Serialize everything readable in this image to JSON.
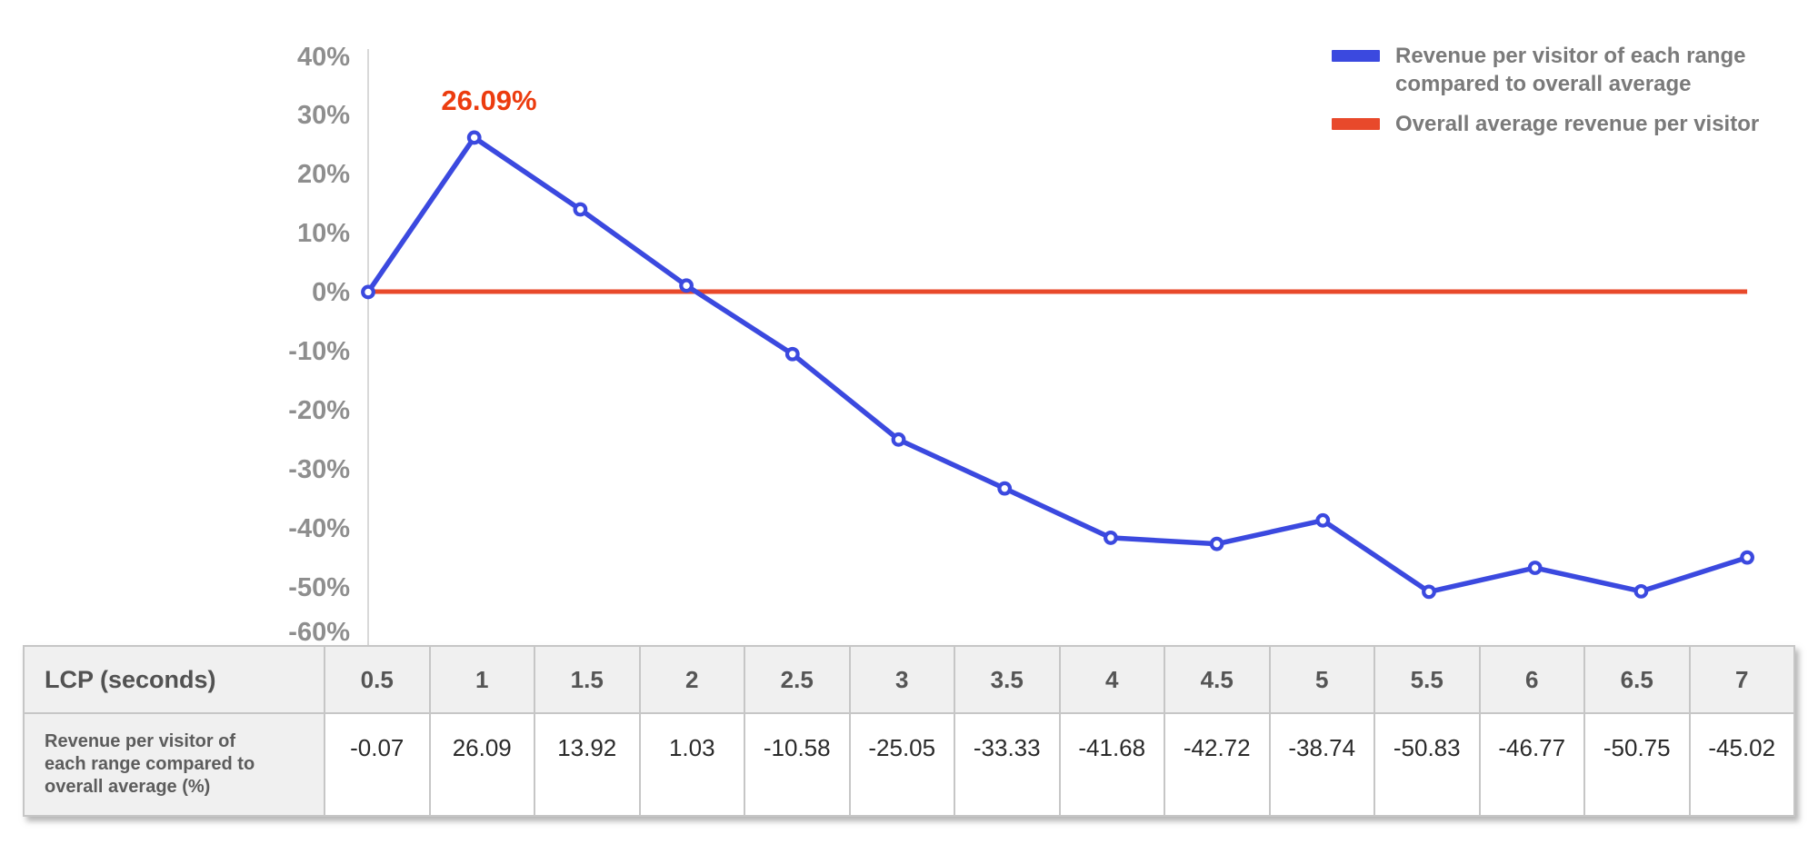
{
  "colors": {
    "series_blue": "#3b49df",
    "series_red": "#e8492b",
    "annotation_red": "#ec3c0f",
    "axis_line_gray": "#d9d9d9",
    "tick_label_gray": "#8e8e8e"
  },
  "chart_data": {
    "type": "line",
    "title": "",
    "xlabel": "LCP (seconds)",
    "ylabel": "",
    "x": [
      0.5,
      1,
      1.5,
      2,
      2.5,
      3,
      3.5,
      4,
      4.5,
      5,
      5.5,
      6,
      6.5,
      7
    ],
    "ylim": [
      -60,
      40
    ],
    "y_tick_labels": [
      "40%",
      "30%",
      "20%",
      "10%",
      "0%",
      "-10%",
      "-20%",
      "-30%",
      "-40%",
      "-50%",
      "-60%"
    ],
    "grid": false,
    "legend_position": "top-right",
    "series": [
      {
        "name": "Revenue per visitor of each range compared to overall average",
        "style": "line-with-ring-markers",
        "color": "#3b49df",
        "values": [
          -0.07,
          26.09,
          13.92,
          1.03,
          -10.58,
          -25.05,
          -33.33,
          -41.68,
          -42.72,
          -38.74,
          -50.83,
          -46.77,
          -50.75,
          -45.02
        ]
      },
      {
        "name": "Overall average revenue per visitor",
        "style": "horizontal-reference-line",
        "color": "#e8492b",
        "value": 0
      }
    ],
    "annotation": {
      "text": "26.09%",
      "at_x": 1,
      "value": 26.09
    }
  },
  "legend": {
    "items": [
      {
        "label": "Revenue per visitor of each range compared to overall average",
        "color": "#3b49df"
      },
      {
        "label": "Overall average revenue per visitor",
        "color": "#e8492b"
      }
    ]
  },
  "table": {
    "header_label": "LCP (seconds)",
    "columns": [
      "0.5",
      "1",
      "1.5",
      "2",
      "2.5",
      "3",
      "3.5",
      "4",
      "4.5",
      "5",
      "5.5",
      "6",
      "6.5",
      "7"
    ],
    "row_label": "Revenue per visitor of each range compared to overall average (%)",
    "values": [
      "-0.07",
      "26.09",
      "13.92",
      "1.03",
      "-10.58",
      "-25.05",
      "-33.33",
      "-41.68",
      "-42.72",
      "-38.74",
      "-50.83",
      "-46.77",
      "-50.75",
      "-45.02"
    ]
  }
}
